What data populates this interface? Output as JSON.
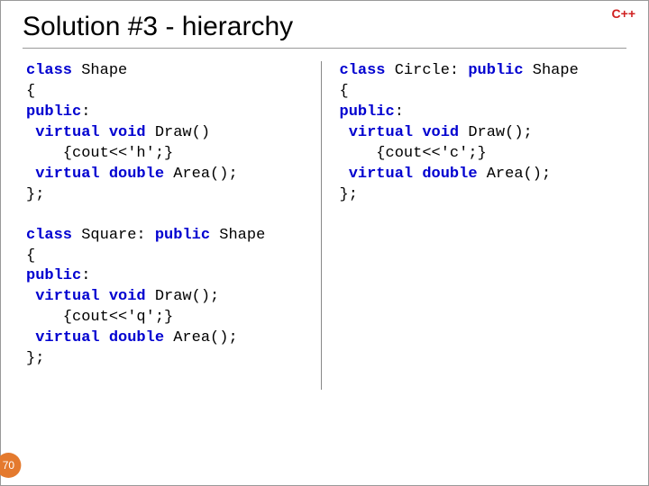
{
  "badge": {
    "text": "C++",
    "color": "#d02020"
  },
  "title": "Solution #3 - hierarchy",
  "pageNumber": "70",
  "code": {
    "shape": {
      "l1a": "class",
      "l1b": " Shape",
      "l2": "{",
      "l3a": "public",
      "l3b": ":",
      "l4a": " virtual void",
      "l4b": " Draw()",
      "l5": "    {cout<<'h';}",
      "l6a": " virtual double",
      "l6b": " Area();",
      "l7": "};"
    },
    "square": {
      "l1a": "class",
      "l1b": " Square: ",
      "l1c": "public",
      "l1d": " Shape",
      "l2": "{",
      "l3a": "public",
      "l3b": ":",
      "l4a": " virtual void",
      "l4b": " Draw();",
      "l5": "    {cout<<'q';}",
      "l6a": " virtual double",
      "l6b": " Area();",
      "l7": "};"
    },
    "circle": {
      "l1a": "class",
      "l1b": " Circle: ",
      "l1c": "public",
      "l1d": " Shape",
      "l2": "{",
      "l3a": "public",
      "l3b": ":",
      "l4a": " virtual void",
      "l4b": " Draw();",
      "l5": "    {cout<<'c';}",
      "l6a": " virtual double",
      "l6b": " Area();",
      "l7": "};"
    }
  }
}
